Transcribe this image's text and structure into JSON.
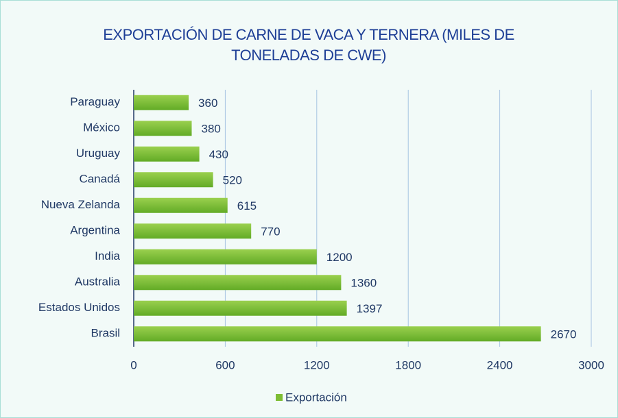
{
  "chart_data": {
    "type": "bar",
    "orientation": "horizontal",
    "title": "EXPORTACIÓN DE CARNE DE VACA Y TERNERA (MILES DE TONELADAS DE CWE)",
    "categories": [
      "Paraguay",
      "México",
      "Uruguay",
      "Canadá",
      "Nueva Zelanda",
      "Argentina",
      "India",
      "Australia",
      "Estados Unidos",
      "Brasil"
    ],
    "series": [
      {
        "name": "Exportación",
        "color": "#7dbd34",
        "values": [
          360,
          380,
          430,
          520,
          615,
          770,
          1200,
          1360,
          1397,
          2670
        ]
      }
    ],
    "xlim": [
      0,
      3000
    ],
    "xticks": [
      0,
      600,
      1200,
      1800,
      2400,
      3000
    ],
    "grid": true,
    "legend": "bottom"
  }
}
